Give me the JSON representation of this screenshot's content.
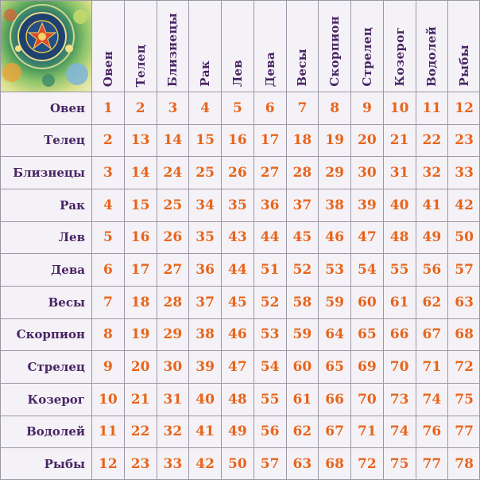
{
  "signs": [
    "Овен",
    "Телец",
    "Близнецы",
    "Рак",
    "Лев",
    "Дева",
    "Весы",
    "Скорпион",
    "Стрелец",
    "Козерог",
    "Водолей",
    "Рыбы"
  ],
  "matrix": [
    [
      1,
      2,
      3,
      4,
      5,
      6,
      7,
      8,
      9,
      10,
      11,
      12
    ],
    [
      2,
      13,
      14,
      15,
      16,
      17,
      18,
      19,
      20,
      21,
      22,
      23
    ],
    [
      3,
      14,
      24,
      25,
      26,
      27,
      28,
      29,
      30,
      31,
      32,
      33
    ],
    [
      4,
      15,
      25,
      34,
      35,
      36,
      37,
      38,
      39,
      40,
      41,
      42
    ],
    [
      5,
      16,
      26,
      35,
      43,
      44,
      45,
      46,
      47,
      48,
      49,
      50
    ],
    [
      6,
      17,
      27,
      36,
      44,
      51,
      52,
      53,
      54,
      55,
      56,
      57
    ],
    [
      7,
      18,
      28,
      37,
      45,
      52,
      58,
      59,
      60,
      61,
      62,
      63
    ],
    [
      8,
      19,
      29,
      38,
      46,
      53,
      59,
      64,
      65,
      66,
      67,
      68
    ],
    [
      9,
      20,
      30,
      39,
      47,
      54,
      60,
      65,
      69,
      70,
      71,
      72
    ],
    [
      10,
      21,
      31,
      40,
      48,
      55,
      61,
      66,
      70,
      73,
      74,
      75
    ],
    [
      11,
      22,
      32,
      41,
      49,
      56,
      62,
      67,
      71,
      74,
      76,
      77
    ],
    [
      12,
      23,
      33,
      42,
      50,
      57,
      63,
      68,
      72,
      75,
      77,
      78
    ]
  ],
  "colors": {
    "header_text": "#4a2466",
    "value_text": "#e8641b",
    "grid_line": "#9b97a6",
    "background": "#f4f2f6"
  },
  "corner_image": "astrological-wheel-illustration"
}
